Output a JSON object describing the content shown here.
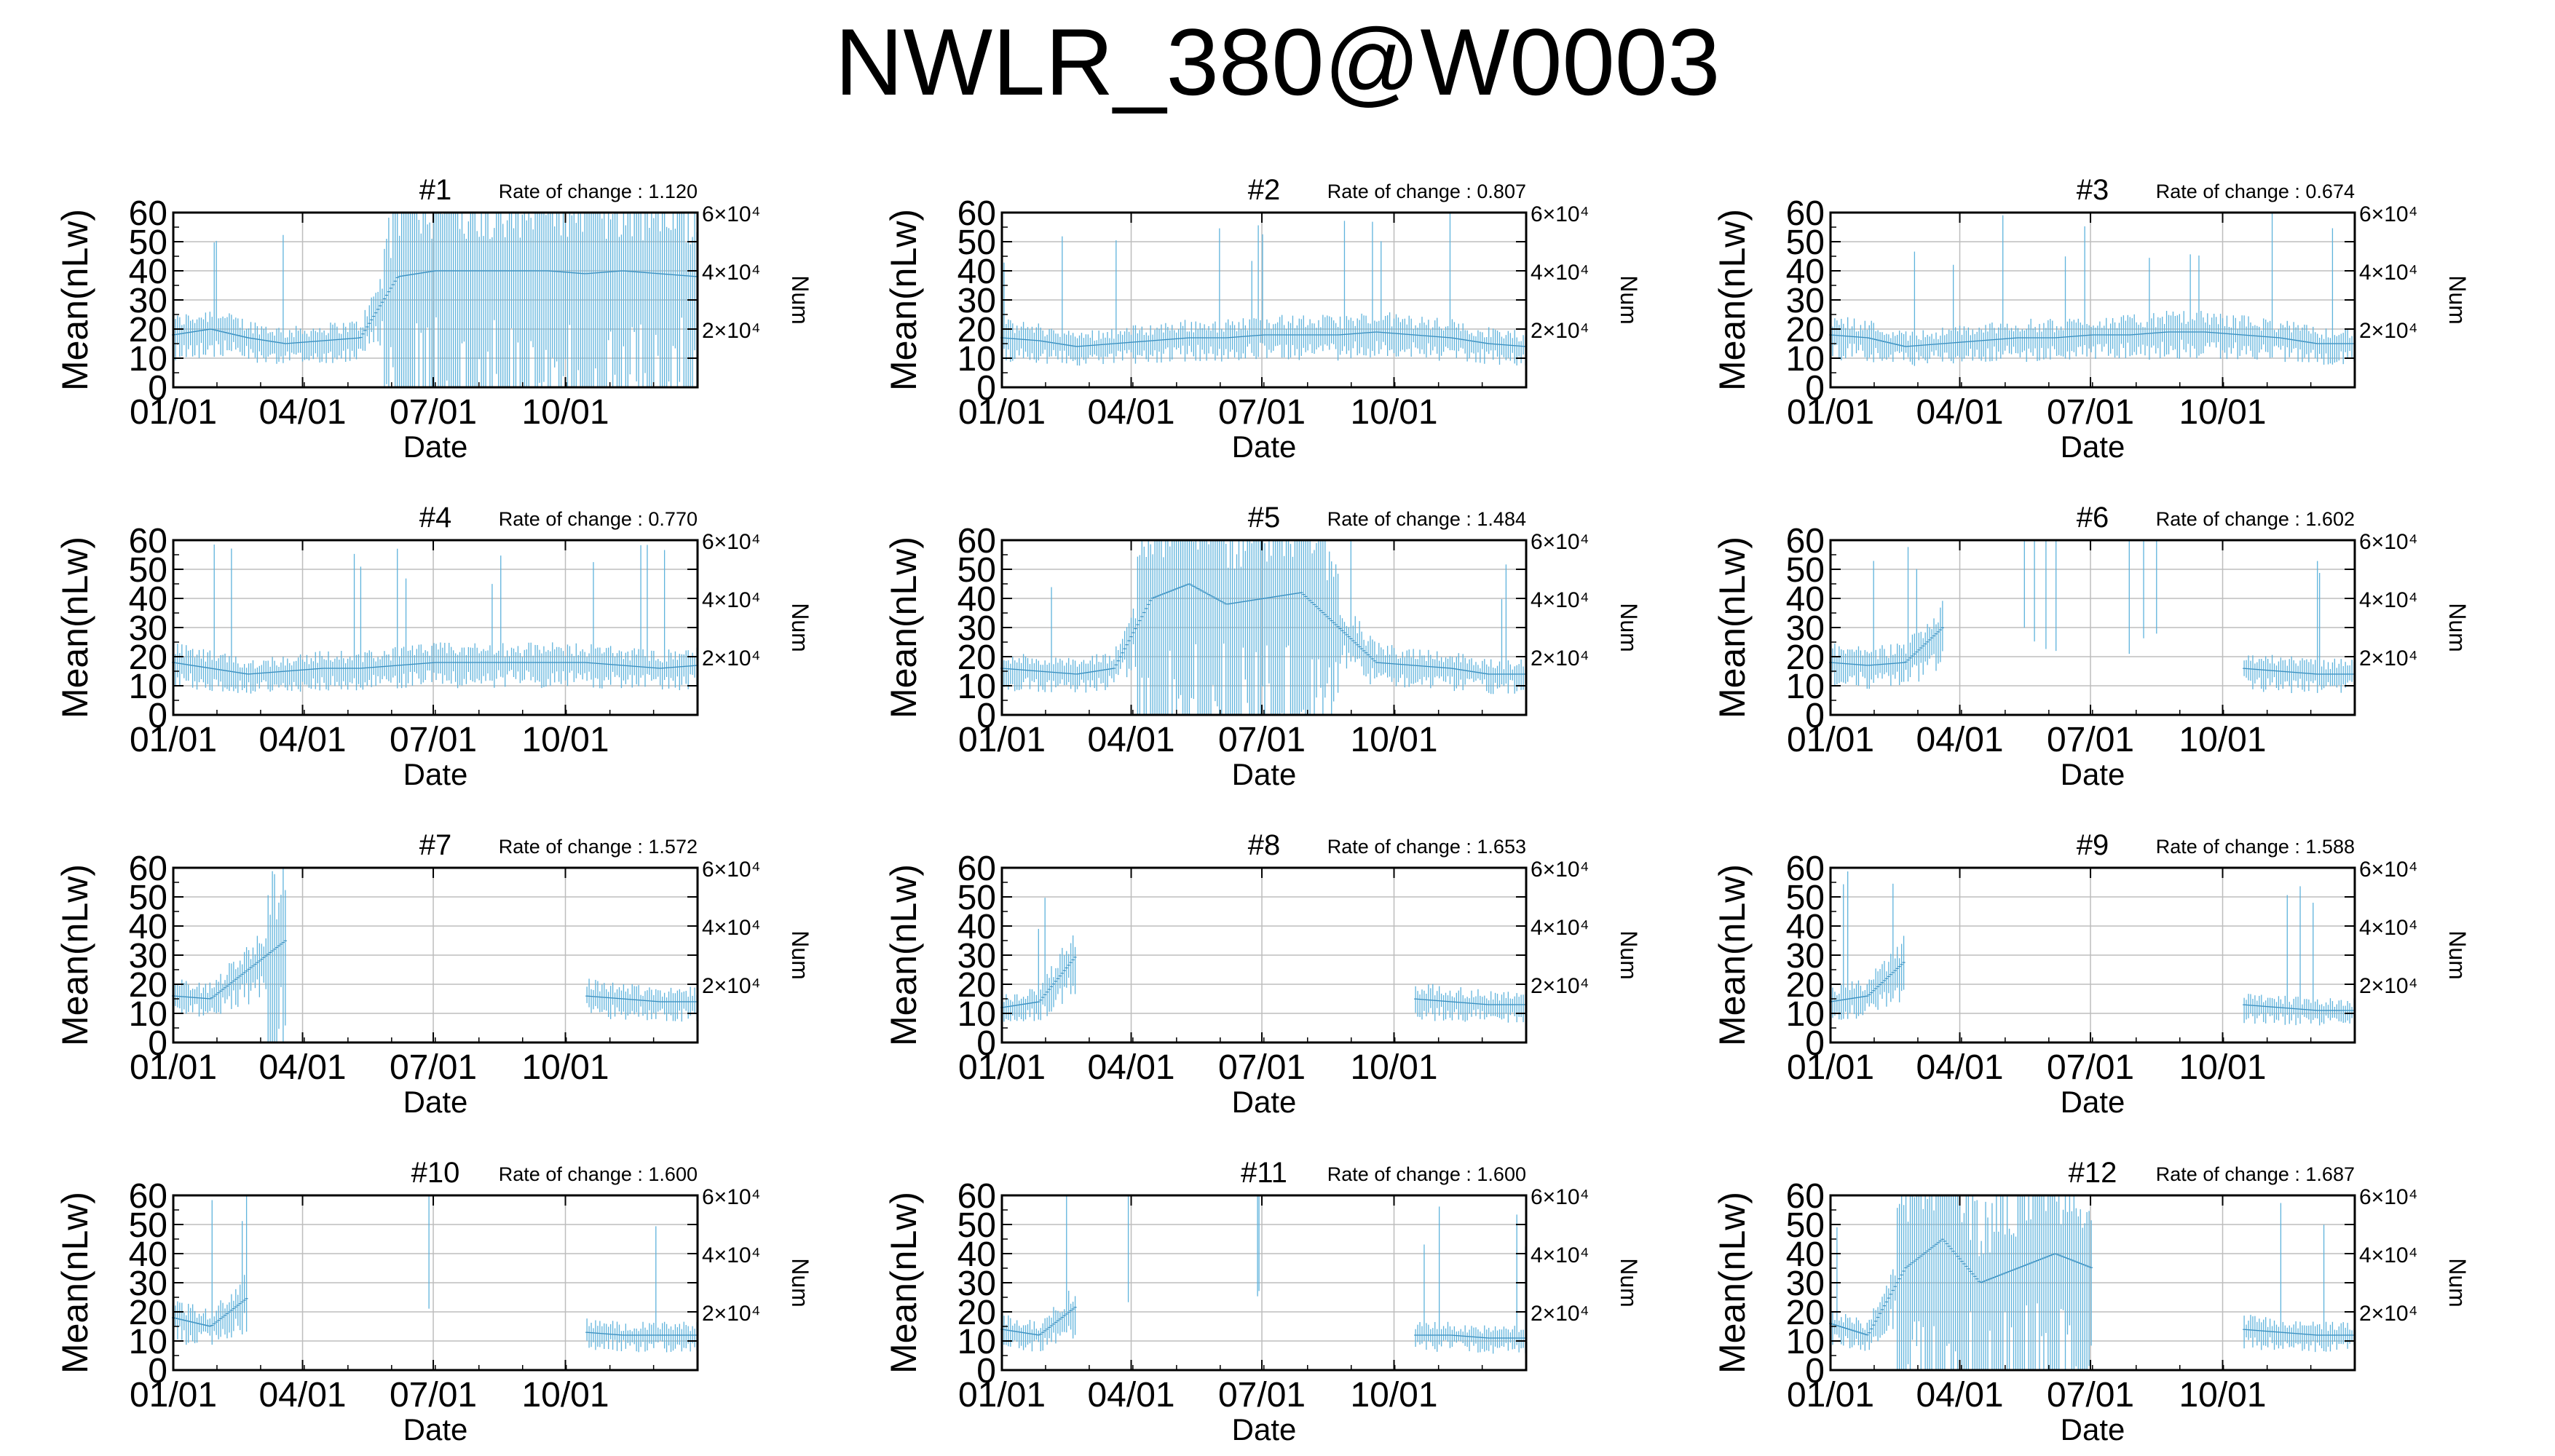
{
  "title": "NWLR_380@W0003",
  "colors": {
    "series": "#5fb3dc",
    "grid": "#bdbdbd",
    "axis": "#000000"
  },
  "chart_data": {
    "type": "line",
    "layout": "4x3 panel grid",
    "shared": {
      "xlabel": "Date",
      "ylabel": "Mean(nLw)",
      "y2label": "Num",
      "ylim": [
        0,
        60
      ],
      "yticks": [
        0,
        10,
        20,
        30,
        40,
        50,
        60
      ],
      "y2ticks": [
        "2×10⁴",
        "4×10⁴",
        "6×10⁴"
      ],
      "xticks": [
        "01/01",
        "04/01",
        "07/01",
        "10/01"
      ],
      "xtick_days": [
        0,
        90,
        181,
        273
      ],
      "xrange_days": [
        0,
        365
      ],
      "grid": true
    },
    "panels": [
      {
        "label": "#1",
        "rate_text": "Rate of change : 1.120",
        "mean": [
          18,
          20,
          17,
          15,
          16,
          17,
          38,
          40,
          40,
          40,
          40,
          39,
          40,
          39,
          38
        ],
        "sparse": []
      },
      {
        "label": "#2",
        "rate_text": "Rate of change : 0.807",
        "mean": [
          17,
          16,
          14,
          15,
          16,
          17,
          17,
          18,
          18,
          18,
          19,
          18,
          17,
          15,
          14
        ],
        "sparse": []
      },
      {
        "label": "#3",
        "rate_text": "Rate of change : 0.674",
        "mean": [
          18,
          17,
          14,
          15,
          16,
          17,
          17,
          18,
          18,
          19,
          19,
          18,
          17,
          15,
          15
        ],
        "sparse": []
      },
      {
        "label": "#4",
        "rate_text": "Rate of change : 0.770",
        "mean": [
          18,
          16,
          14,
          15,
          16,
          16,
          17,
          18,
          18,
          18,
          18,
          18,
          17,
          16,
          17
        ],
        "sparse": []
      },
      {
        "label": "#5",
        "rate_text": "Rate of change : 1.484",
        "mean": [
          16,
          15,
          14,
          16,
          40,
          45,
          38,
          40,
          42,
          30,
          18,
          17,
          16,
          14,
          14
        ],
        "sparse": []
      },
      {
        "label": "#6",
        "rate_text": "Rate of change : 1.602",
        "mean": [
          18,
          17,
          18,
          30,
          null,
          null,
          null,
          null,
          null,
          null,
          null,
          16,
          15,
          14,
          14
        ],
        "sparse": [
          135,
          142,
          150,
          157,
          208,
          218,
          227
        ]
      },
      {
        "label": "#7",
        "rate_text": "Rate of change : 1.572",
        "mean": [
          16,
          15,
          25,
          35,
          null,
          null,
          null,
          null,
          null,
          null,
          null,
          16,
          15,
          14,
          14
        ],
        "sparse": []
      },
      {
        "label": "#8",
        "rate_text": "Rate of change : 1.653",
        "mean": [
          12,
          14,
          30,
          null,
          null,
          null,
          null,
          null,
          null,
          null,
          null,
          15,
          14,
          13,
          13
        ],
        "sparse": []
      },
      {
        "label": "#9",
        "rate_text": "Rate of change : 1.588",
        "mean": [
          14,
          16,
          28,
          null,
          null,
          null,
          null,
          null,
          null,
          null,
          null,
          13,
          12,
          11,
          11
        ],
        "sparse": []
      },
      {
        "label": "#10",
        "rate_text": "Rate of change : 1.600",
        "mean": [
          18,
          15,
          25,
          null,
          null,
          null,
          null,
          null,
          null,
          null,
          null,
          13,
          12,
          12,
          12
        ],
        "sparse": [
          178
        ]
      },
      {
        "label": "#11",
        "rate_text": "Rate of change : 1.600",
        "mean": [
          14,
          12,
          22,
          null,
          null,
          null,
          null,
          null,
          null,
          null,
          null,
          12,
          12,
          11,
          11
        ],
        "sparse": [
          88,
          178,
          179
        ]
      },
      {
        "label": "#12",
        "rate_text": "Rate of change : 1.687",
        "mean": [
          16,
          12,
          35,
          45,
          30,
          35,
          40,
          35,
          null,
          null,
          null,
          14,
          13,
          12,
          12
        ],
        "sparse": []
      }
    ]
  }
}
